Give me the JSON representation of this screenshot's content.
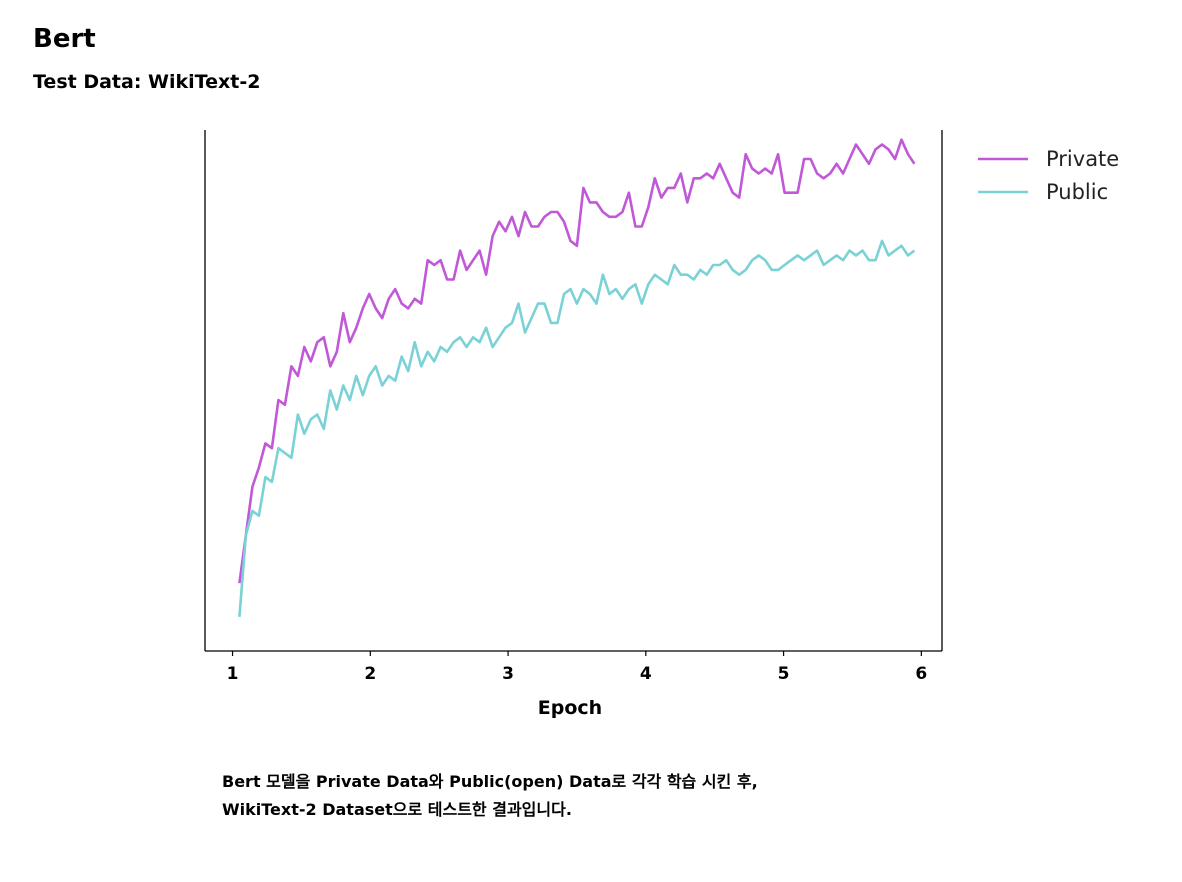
{
  "page": {
    "title": "Bert",
    "subtitle": "Test Data: WikiText-2",
    "caption": [
      "Bert 모델을 Private Data와 Public(open) Data로 각각 학습 시킨 후,",
      "WikiText-2 Dataset으로 테스트한 결과입니다."
    ]
  },
  "chart_data": {
    "type": "line",
    "title": "",
    "xlabel": "Epoch",
    "ylabel": "",
    "xticks": [
      1,
      2,
      3,
      4,
      5,
      6
    ],
    "xlim": [
      0.8,
      6.15
    ],
    "ylim": [
      0,
      1
    ],
    "grid": false,
    "legend_position": "top-right (outside plot)",
    "series": [
      {
        "name": "Private",
        "color": "#c058d8",
        "x_start": 1.05,
        "x_end": 5.95,
        "values": [
          0.12,
          0.22,
          0.32,
          0.36,
          0.41,
          0.4,
          0.5,
          0.49,
          0.57,
          0.55,
          0.61,
          0.58,
          0.62,
          0.63,
          0.57,
          0.6,
          0.68,
          0.62,
          0.65,
          0.69,
          0.72,
          0.69,
          0.67,
          0.71,
          0.73,
          0.7,
          0.69,
          0.71,
          0.7,
          0.79,
          0.78,
          0.79,
          0.75,
          0.75,
          0.81,
          0.77,
          0.79,
          0.81,
          0.76,
          0.84,
          0.87,
          0.85,
          0.88,
          0.84,
          0.89,
          0.86,
          0.86,
          0.88,
          0.89,
          0.89,
          0.87,
          0.83,
          0.82,
          0.94,
          0.91,
          0.91,
          0.89,
          0.88,
          0.88,
          0.89,
          0.93,
          0.86,
          0.86,
          0.9,
          0.96,
          0.92,
          0.94,
          0.94,
          0.97,
          0.91,
          0.96,
          0.96,
          0.97,
          0.96,
          0.99,
          0.96,
          0.93,
          0.92,
          1.01,
          0.98,
          0.97,
          0.98,
          0.97,
          1.01,
          0.93,
          0.93,
          0.93,
          1.0,
          1.0,
          0.97,
          0.96,
          0.97,
          0.99,
          0.97,
          1.0,
          1.03,
          1.01,
          0.99,
          1.02,
          1.03,
          1.02,
          1.0,
          1.04,
          1.01,
          0.99
        ]
      },
      {
        "name": "Public",
        "color": "#7ad2d6",
        "x_start": 1.05,
        "x_end": 5.95,
        "values": [
          0.05,
          0.22,
          0.27,
          0.26,
          0.34,
          0.33,
          0.4,
          0.39,
          0.38,
          0.47,
          0.43,
          0.46,
          0.47,
          0.44,
          0.52,
          0.48,
          0.53,
          0.5,
          0.55,
          0.51,
          0.55,
          0.57,
          0.53,
          0.55,
          0.54,
          0.59,
          0.56,
          0.62,
          0.57,
          0.6,
          0.58,
          0.61,
          0.6,
          0.62,
          0.63,
          0.61,
          0.63,
          0.62,
          0.65,
          0.61,
          0.63,
          0.65,
          0.66,
          0.7,
          0.64,
          0.67,
          0.7,
          0.7,
          0.66,
          0.66,
          0.72,
          0.73,
          0.7,
          0.73,
          0.72,
          0.7,
          0.76,
          0.72,
          0.73,
          0.71,
          0.73,
          0.74,
          0.7,
          0.74,
          0.76,
          0.75,
          0.74,
          0.78,
          0.76,
          0.76,
          0.75,
          0.77,
          0.76,
          0.78,
          0.78,
          0.79,
          0.77,
          0.76,
          0.77,
          0.79,
          0.8,
          0.79,
          0.77,
          0.77,
          0.78,
          0.79,
          0.8,
          0.79,
          0.8,
          0.81,
          0.78,
          0.79,
          0.8,
          0.79,
          0.81,
          0.8,
          0.81,
          0.79,
          0.79,
          0.83,
          0.8,
          0.81,
          0.82,
          0.8,
          0.81
        ]
      }
    ]
  }
}
